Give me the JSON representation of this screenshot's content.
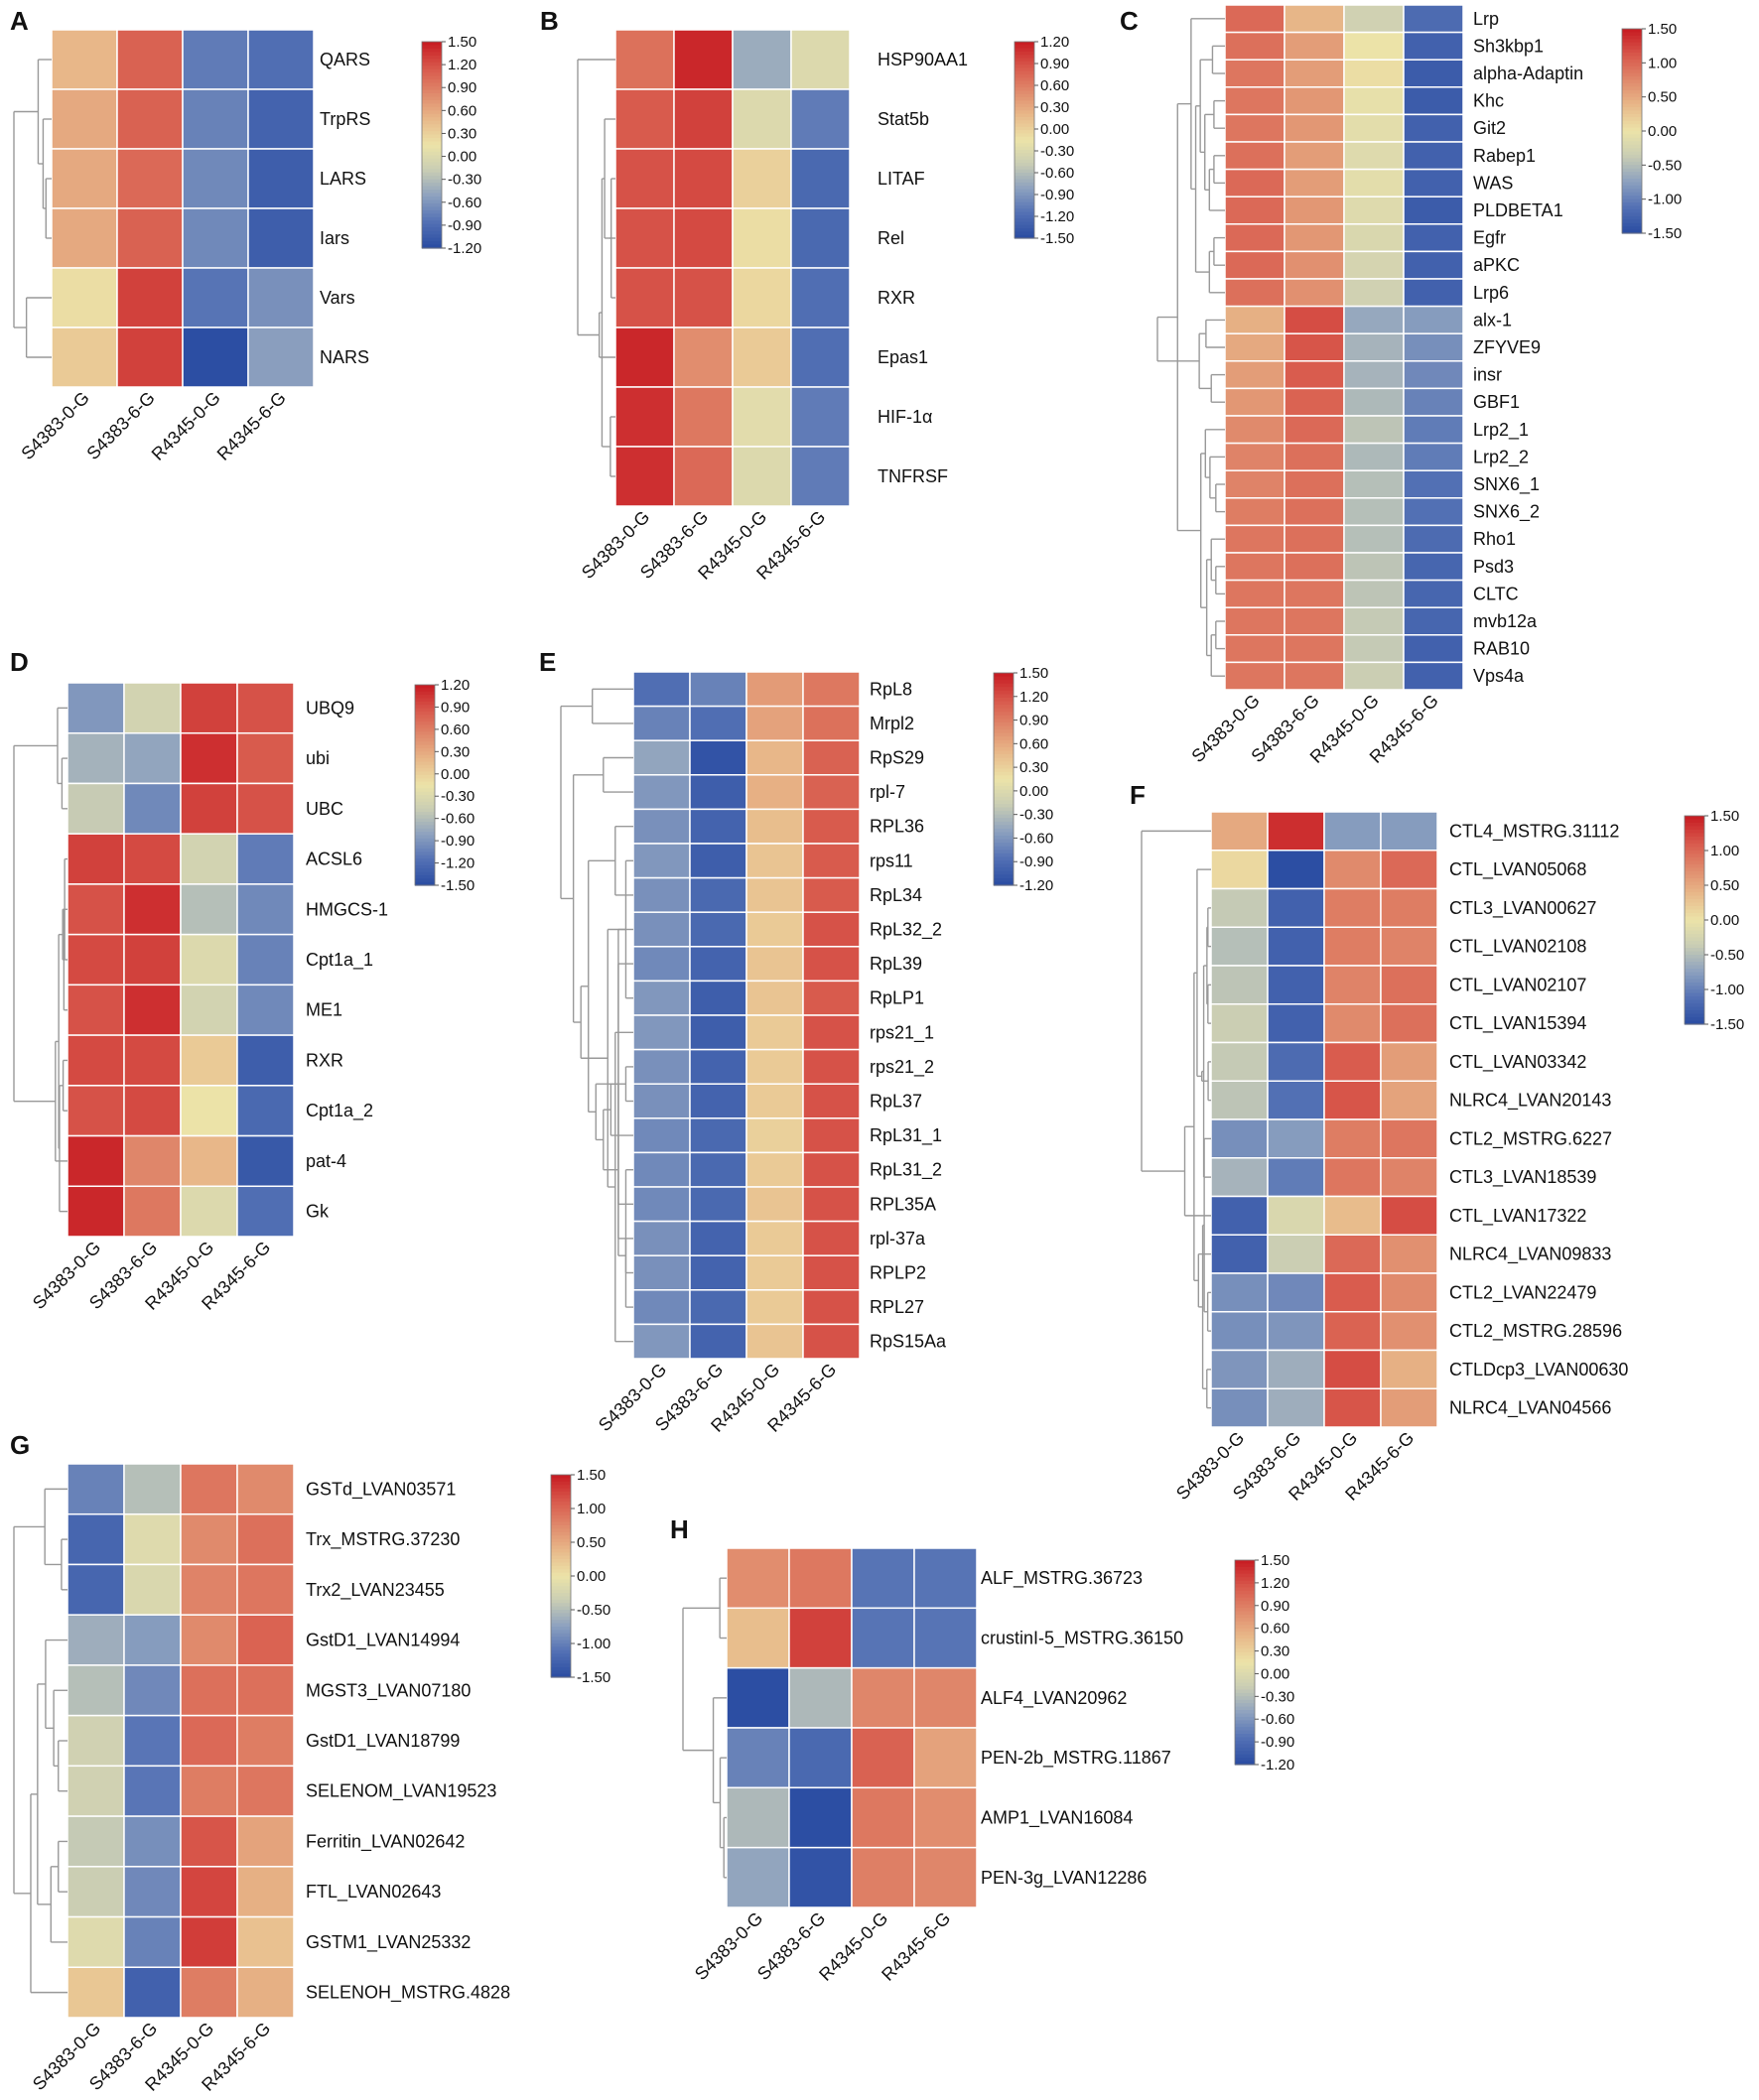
{
  "figure": {
    "colormap": [
      "#2c4ea3",
      "#5572b5",
      "#8ea2bf",
      "#c9cdb4",
      "#ece3a8",
      "#e8b98a",
      "#e08a6c",
      "#d8594c",
      "#c81e24"
    ]
  },
  "chart_data": [
    {
      "panel": "A",
      "type": "heatmap",
      "rows": [
        "QARS",
        "TrpRS",
        "LARS",
        "Iars",
        "Vars",
        "NARS"
      ],
      "cols": [
        "S4383-0-G",
        "S4383-6-G",
        "R4345-0-G",
        "R4345-6-G"
      ],
      "values": [
        [
          0.5,
          1.1,
          -0.8,
          -0.9
        ],
        [
          0.6,
          1.1,
          -0.75,
          -1.0
        ],
        [
          0.6,
          1.05,
          -0.7,
          -1.05
        ],
        [
          0.6,
          1.1,
          -0.7,
          -1.05
        ],
        [
          0.2,
          1.3,
          -0.85,
          -0.65
        ],
        [
          0.35,
          1.3,
          -1.2,
          -0.55
        ]
      ],
      "colorbar": {
        "range": [
          -1.2,
          1.5
        ],
        "ticks": [
          "1.50",
          "1.20",
          "0.90",
          "0.60",
          "0.30",
          "0.00",
          "-0.30",
          "-0.60",
          "-0.90",
          "-1.20"
        ]
      }
    },
    {
      "panel": "B",
      "type": "heatmap",
      "rows": [
        "HSP90AA1",
        "Stat5b",
        "LITAF",
        "Rel",
        "RXR",
        "Epas1",
        "HIF-1α",
        "TNFRSF"
      ],
      "cols": [
        "S4383-0-G",
        "S4383-6-G",
        "R4345-0-G",
        "R4345-6-G"
      ],
      "values": [
        [
          0.7,
          1.15,
          -0.75,
          -0.3
        ],
        [
          0.85,
          1.0,
          -0.3,
          -1.1
        ],
        [
          0.9,
          0.95,
          0.0,
          -1.25
        ],
        [
          0.9,
          0.95,
          -0.1,
          -1.25
        ],
        [
          0.9,
          0.9,
          -0.05,
          -1.2
        ],
        [
          1.15,
          0.5,
          0.05,
          -1.2
        ],
        [
          1.1,
          0.65,
          -0.25,
          -1.1
        ],
        [
          1.1,
          0.75,
          -0.3,
          -1.1
        ]
      ],
      "colorbar": {
        "range": [
          -1.5,
          1.2
        ],
        "ticks": [
          "1.20",
          "0.90",
          "0.60",
          "0.30",
          "0.00",
          "-0.30",
          "-0.60",
          "-0.90",
          "-1.20",
          "-1.50"
        ]
      }
    },
    {
      "panel": "C",
      "type": "heatmap",
      "rows": [
        "Lrp",
        "Sh3kbp1",
        "alpha-Adaptin",
        "Khc",
        "Git2",
        "Rabep1",
        "WAS",
        "PLDBETA1",
        "Egfr",
        "aPKC",
        "Lrp6",
        "alx-1",
        "ZFYVE9",
        "insr",
        "GBF1",
        "Lrp2_1",
        "Lrp2_2",
        "SNX6_1",
        "SNX6_2",
        "Rho1",
        "Psd3",
        "CLTC",
        "mvb12a",
        "RAB10",
        "Vps4a"
      ],
      "cols": [
        "S4383-0-G",
        "S4383-6-G",
        "R4345-0-G",
        "R4345-6-G"
      ],
      "values": [
        [
          1.0,
          0.4,
          -0.3,
          -1.2
        ],
        [
          0.95,
          0.6,
          0.0,
          -1.3
        ],
        [
          0.9,
          0.6,
          0.05,
          -1.35
        ],
        [
          0.9,
          0.65,
          -0.05,
          -1.35
        ],
        [
          0.9,
          0.65,
          -0.1,
          -1.3
        ],
        [
          0.95,
          0.6,
          -0.15,
          -1.3
        ],
        [
          1.0,
          0.6,
          -0.1,
          -1.3
        ],
        [
          1.0,
          0.65,
          -0.15,
          -1.35
        ],
        [
          1.0,
          0.65,
          -0.2,
          -1.3
        ],
        [
          1.0,
          0.7,
          -0.25,
          -1.3
        ],
        [
          0.95,
          0.7,
          -0.3,
          -1.3
        ],
        [
          0.45,
          1.2,
          -0.7,
          -0.8
        ],
        [
          0.5,
          1.15,
          -0.6,
          -0.9
        ],
        [
          0.6,
          1.1,
          -0.6,
          -0.95
        ],
        [
          0.65,
          1.05,
          -0.55,
          -1.0
        ],
        [
          0.75,
          1.0,
          -0.45,
          -1.05
        ],
        [
          0.8,
          0.95,
          -0.55,
          -1.05
        ],
        [
          0.8,
          0.95,
          -0.5,
          -1.15
        ],
        [
          0.85,
          0.95,
          -0.5,
          -1.15
        ],
        [
          0.9,
          0.95,
          -0.5,
          -1.2
        ],
        [
          0.9,
          0.95,
          -0.45,
          -1.25
        ],
        [
          0.9,
          0.9,
          -0.45,
          -1.25
        ],
        [
          0.9,
          0.9,
          -0.4,
          -1.25
        ],
        [
          0.9,
          0.9,
          -0.4,
          -1.3
        ],
        [
          0.9,
          0.9,
          -0.35,
          -1.3
        ]
      ],
      "colorbar": {
        "range": [
          -1.5,
          1.5
        ],
        "ticks": [
          "1.50",
          "1.00",
          "0.50",
          "0.00",
          "-0.50",
          "-1.00",
          "-1.50"
        ]
      }
    },
    {
      "panel": "D",
      "type": "heatmap",
      "rows": [
        "UBQ9",
        "ubi",
        "UBC",
        "ACSL6",
        "HMGCS-1",
        "Cpt1a_1",
        "ME1",
        "RXR",
        "Cpt1a_2",
        "pat-4",
        "Gk"
      ],
      "cols": [
        "S4383-0-G",
        "S4383-6-G",
        "R4345-0-G",
        "R4345-6-G"
      ],
      "values": [
        [
          -0.9,
          -0.4,
          1.0,
          0.9
        ],
        [
          -0.7,
          -0.8,
          1.1,
          0.85
        ],
        [
          -0.5,
          -1.0,
          1.0,
          0.9
        ],
        [
          1.0,
          0.95,
          -0.4,
          -1.1
        ],
        [
          0.9,
          1.1,
          -0.6,
          -1.0
        ],
        [
          0.95,
          1.0,
          -0.3,
          -1.05
        ],
        [
          0.9,
          1.1,
          -0.4,
          -1.0
        ],
        [
          0.95,
          0.95,
          0.05,
          -1.35
        ],
        [
          0.9,
          0.95,
          -0.15,
          -1.25
        ],
        [
          1.15,
          0.55,
          0.2,
          -1.4
        ],
        [
          1.15,
          0.65,
          -0.3,
          -1.2
        ]
      ],
      "colorbar": {
        "range": [
          -1.5,
          1.2
        ],
        "ticks": [
          "1.20",
          "0.90",
          "0.60",
          "0.30",
          "0.00",
          "-0.30",
          "-0.60",
          "-0.90",
          "-1.20",
          "-1.50"
        ]
      }
    },
    {
      "panel": "E",
      "type": "heatmap",
      "rows": [
        "RpL8",
        "Mrpl2",
        "RpS29",
        "rpl-7",
        "RPL36",
        "rps11",
        "RpL34",
        "RpL32_2",
        "RpL39",
        "RpLP1",
        "rps21_1",
        "rps21_2",
        "RpL37",
        "RpL31_1",
        "RpL31_2",
        "RPL35A",
        "rpl-37a",
        "RPLP2",
        "RPL27",
        "RpS15Aa"
      ],
      "cols": [
        "S4383-0-G",
        "S4383-6-G",
        "R4345-0-G",
        "R4345-6-G"
      ],
      "values": [
        [
          -0.9,
          -0.75,
          0.7,
          0.95
        ],
        [
          -0.75,
          -0.9,
          0.65,
          1.0
        ],
        [
          -0.5,
          -1.15,
          0.5,
          1.1
        ],
        [
          -0.6,
          -1.05,
          0.55,
          1.1
        ],
        [
          -0.65,
          -1.0,
          0.45,
          1.15
        ],
        [
          -0.6,
          -1.05,
          0.4,
          1.15
        ],
        [
          -0.65,
          -0.95,
          0.4,
          1.15
        ],
        [
          -0.65,
          -0.95,
          0.35,
          1.2
        ],
        [
          -0.7,
          -1.0,
          0.4,
          1.2
        ],
        [
          -0.6,
          -1.05,
          0.4,
          1.15
        ],
        [
          -0.6,
          -1.05,
          0.35,
          1.2
        ],
        [
          -0.65,
          -1.0,
          0.35,
          1.2
        ],
        [
          -0.65,
          -1.0,
          0.35,
          1.2
        ],
        [
          -0.7,
          -0.95,
          0.3,
          1.2
        ],
        [
          -0.7,
          -0.95,
          0.35,
          1.2
        ],
        [
          -0.7,
          -0.95,
          0.4,
          1.2
        ],
        [
          -0.65,
          -1.0,
          0.35,
          1.2
        ],
        [
          -0.65,
          -1.0,
          0.35,
          1.2
        ],
        [
          -0.7,
          -0.95,
          0.35,
          1.2
        ],
        [
          -0.6,
          -1.0,
          0.4,
          1.2
        ]
      ],
      "colorbar": {
        "range": [
          -1.2,
          1.5
        ],
        "ticks": [
          "1.50",
          "1.20",
          "0.90",
          "0.60",
          "0.30",
          "0.00",
          "-0.30",
          "-0.60",
          "-0.90",
          "-1.20"
        ]
      }
    },
    {
      "panel": "F",
      "type": "heatmap",
      "rows": [
        "CTL4_MSTRG.31112",
        "CTL_LVAN05068",
        "CTL3_LVAN00627",
        "CTL_LVAN02108",
        "CTL_LVAN02107",
        "CTL_LVAN15394",
        "CTL_LVAN03342",
        "NLRC4_LVAN20143",
        "CTL2_MSTRG.6227",
        "CTL3_LVAN18539",
        "CTL_LVAN17322",
        "NLRC4_LVAN09833",
        "CTL2_LVAN22479",
        "CTL2_MSTRG.28596",
        "CTLDcp3_LVAN00630",
        "NLRC4_LVAN04566"
      ],
      "cols": [
        "S4383-0-G",
        "S4383-6-G",
        "R4345-0-G",
        "R4345-6-G"
      ],
      "values": [
        [
          0.5,
          1.4,
          -0.8,
          -0.8
        ],
        [
          0.1,
          -1.5,
          0.75,
          1.0
        ],
        [
          -0.4,
          -1.3,
          0.85,
          0.85
        ],
        [
          -0.5,
          -1.3,
          0.85,
          0.8
        ],
        [
          -0.45,
          -1.3,
          0.8,
          0.95
        ],
        [
          -0.35,
          -1.3,
          0.75,
          0.95
        ],
        [
          -0.4,
          -1.2,
          1.1,
          0.6
        ],
        [
          -0.45,
          -1.15,
          1.15,
          0.55
        ],
        [
          -0.9,
          -0.8,
          0.85,
          0.9
        ],
        [
          -0.6,
          -1.05,
          0.9,
          0.8
        ],
        [
          -1.3,
          -0.2,
          0.35,
          1.2
        ],
        [
          -1.3,
          -0.35,
          1.0,
          0.7
        ],
        [
          -0.9,
          -0.95,
          1.1,
          0.75
        ],
        [
          -0.9,
          -0.85,
          1.05,
          0.7
        ],
        [
          -0.85,
          -0.65,
          1.2,
          0.45
        ],
        [
          -0.9,
          -0.65,
          1.15,
          0.6
        ]
      ],
      "colorbar": {
        "range": [
          -1.5,
          1.5
        ],
        "ticks": [
          "1.50",
          "1.00",
          "0.50",
          "0.00",
          "-0.50",
          "-1.00",
          "-1.50"
        ]
      }
    },
    {
      "panel": "G",
      "type": "heatmap",
      "rows": [
        "GSTd_LVAN03571",
        "Trx_MSTRG.37230",
        "Trx2_LVAN23455",
        "GstD1_LVAN14994",
        "MGST3_LVAN07180",
        "GstD1_LVAN18799",
        "SELENOM_LVAN19523",
        "Ferritin_LVAN02642",
        "FTL_LVAN02643",
        "GSTM1_LVAN25332",
        "SELENOH_MSTRG.4828"
      ],
      "cols": [
        "S4383-0-G",
        "S4383-6-G",
        "R4345-0-G",
        "R4345-6-G"
      ],
      "values": [
        [
          -1.0,
          -0.5,
          0.9,
          0.75
        ],
        [
          -1.25,
          -0.15,
          0.75,
          0.95
        ],
        [
          -1.25,
          -0.2,
          0.8,
          0.9
        ],
        [
          -0.65,
          -0.8,
          0.75,
          1.05
        ],
        [
          -0.5,
          -0.95,
          0.95,
          0.95
        ],
        [
          -0.3,
          -1.1,
          1.0,
          0.85
        ],
        [
          -0.3,
          -1.1,
          0.85,
          0.9
        ],
        [
          -0.4,
          -0.9,
          1.15,
          0.55
        ],
        [
          -0.35,
          -0.95,
          1.25,
          0.45
        ],
        [
          -0.15,
          -1.0,
          1.3,
          0.3
        ],
        [
          0.25,
          -1.3,
          0.85,
          0.45
        ]
      ],
      "colorbar": {
        "range": [
          -1.5,
          1.5
        ],
        "ticks": [
          "1.50",
          "1.00",
          "0.50",
          "0.00",
          "-0.50",
          "-1.00",
          "-1.50"
        ]
      }
    },
    {
      "panel": "H",
      "type": "heatmap",
      "rows": [
        "ALF_MSTRG.36723",
        "crustinI-5_MSTRG.36150",
        "ALF4_LVAN20962",
        "PEN-2b_MSTRG.11867",
        "AMP1_LVAN16084",
        "PEN-3g_LVAN12286"
      ],
      "cols": [
        "S4383-0-G",
        "S4383-6-G",
        "R4345-0-G",
        "R4345-6-G"
      ],
      "values": [
        [
          0.8,
          0.95,
          -0.85,
          -0.85
        ],
        [
          0.45,
          1.3,
          -0.85,
          -0.85
        ],
        [
          -1.2,
          -0.35,
          0.85,
          0.85
        ],
        [
          -0.75,
          -0.95,
          1.1,
          0.65
        ],
        [
          -0.35,
          -1.2,
          0.95,
          0.8
        ],
        [
          -0.5,
          -1.15,
          0.9,
          0.85
        ]
      ],
      "colorbar": {
        "range": [
          -1.2,
          1.5
        ],
        "ticks": [
          "1.50",
          "1.20",
          "0.90",
          "0.60",
          "0.30",
          "0.00",
          "-0.30",
          "-0.60",
          "-0.90",
          "-1.20"
        ]
      }
    }
  ]
}
